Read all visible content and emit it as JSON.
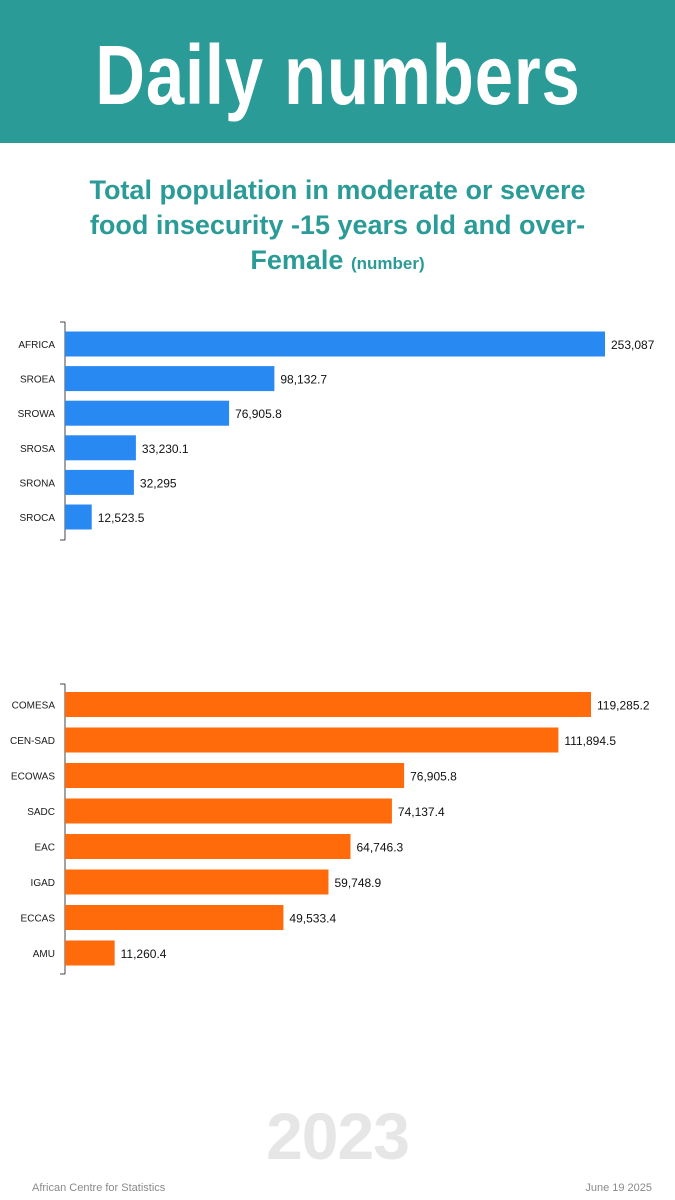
{
  "header": {
    "title": "Daily numbers"
  },
  "subtitle": {
    "main": "Total population in moderate or severe food insecurity -15 years old and over- Female",
    "unit": "(number)"
  },
  "colors": {
    "header_bg": "#2b9b98",
    "series1": "#2989f3",
    "series2": "#ff6a0a"
  },
  "chart_data": [
    {
      "type": "bar",
      "orientation": "horizontal",
      "categories": [
        "AFRICA",
        "SROEA",
        "SROWA",
        "SROSA",
        "SRONA",
        "SROCA"
      ],
      "values": [
        253087,
        98132.7,
        76905.8,
        33230.1,
        32295,
        12523.5
      ],
      "value_labels": [
        "253,087",
        "98,132.7",
        "76,905.8",
        "33,230.1",
        "32,295",
        "12,523.5"
      ],
      "color": "#2989f3",
      "xlim": [
        0,
        253087
      ]
    },
    {
      "type": "bar",
      "orientation": "horizontal",
      "categories": [
        "COMESA",
        "CEN-SAD",
        "ECOWAS",
        "SADC",
        "EAC",
        "IGAD",
        "ECCAS",
        "AMU"
      ],
      "values": [
        119285.2,
        111894.5,
        76905.8,
        74137.4,
        64746.3,
        59748.9,
        49533.4,
        11260.4
      ],
      "value_labels": [
        "119,285.2",
        "111,894.5",
        "76,905.8",
        "74,137.4",
        "64,746.3",
        "59,748.9",
        "49,533.4",
        "11,260.4"
      ],
      "color": "#ff6a0a",
      "xlim": [
        0,
        119285.2
      ]
    }
  ],
  "year": "2023",
  "footer": {
    "source": "African Centre for Statistics",
    "date": "June 19 2025"
  }
}
